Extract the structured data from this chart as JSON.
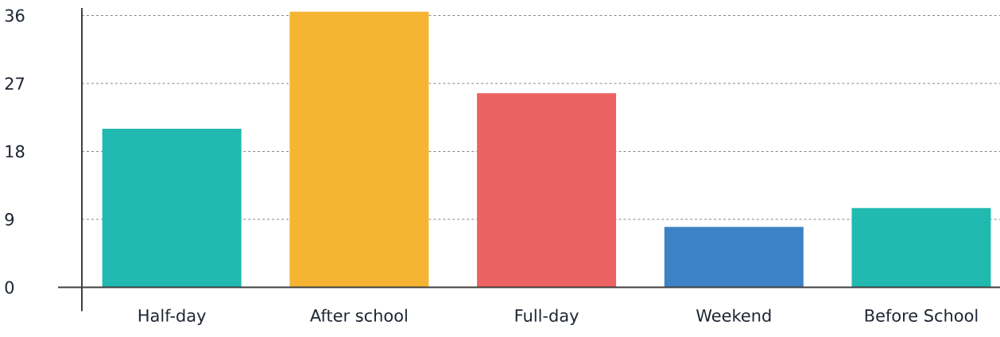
{
  "chart_data": {
    "type": "bar",
    "categories": [
      "Half-day",
      "After school",
      "Full-day",
      "Weekend",
      "Before School"
    ],
    "values": [
      21,
      36.5,
      25.7,
      8,
      10.5
    ],
    "colors": [
      "#20bab0",
      "#f5b533",
      "#ec6262",
      "#3d82c4",
      "#20bab0"
    ],
    "ylim": [
      0,
      37
    ],
    "yticks": [
      0,
      9,
      18,
      27,
      36
    ],
    "grid": "y"
  }
}
